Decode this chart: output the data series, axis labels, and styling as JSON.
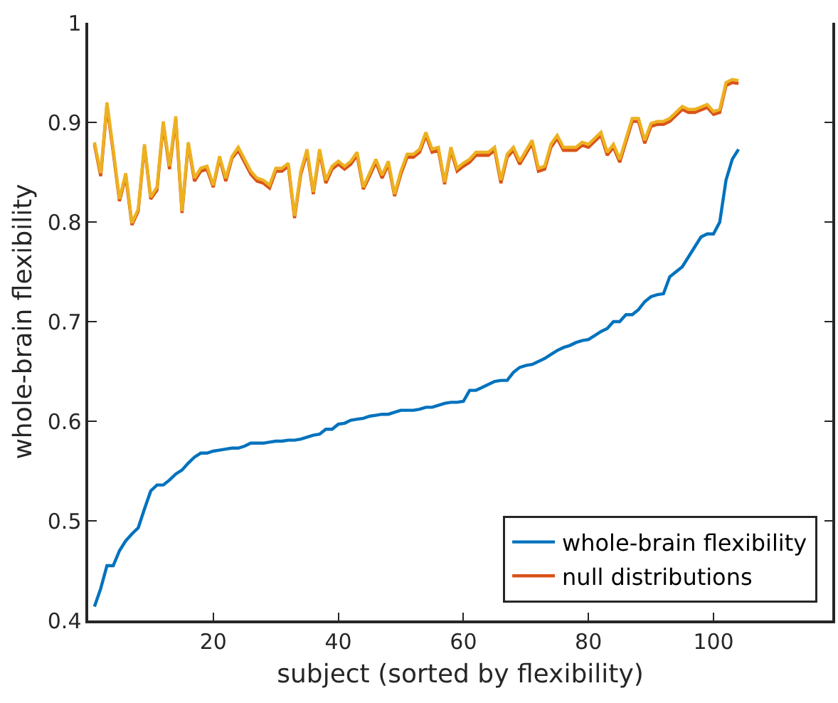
{
  "chart_data": {
    "type": "line",
    "xlabel": "subject (sorted by flexibility)",
    "ylabel": "whole-brain flexibility",
    "xlim": [
      0,
      119
    ],
    "xticks": [
      20,
      40,
      60,
      80,
      100
    ],
    "ylim": [
      0.4,
      1
    ],
    "yticks": [
      0.4,
      0.5,
      0.6,
      0.7,
      0.8,
      0.9,
      {
        "value": 1,
        "label": "1"
      }
    ],
    "legend": "bottom right",
    "marker": "none",
    "line_style": "solid",
    "series": [
      {
        "name": null,
        "color": "#edb120",
        "x": [
          1,
          2,
          3,
          4,
          5,
          6,
          7,
          8,
          9,
          10,
          11,
          12,
          13,
          14,
          15,
          16,
          17,
          18,
          19,
          20,
          21,
          22,
          23,
          24,
          25,
          26,
          27,
          28,
          29,
          30,
          31,
          32,
          33,
          34,
          35,
          36,
          37,
          38,
          39,
          40,
          41,
          42,
          43,
          44,
          45,
          46,
          47,
          48,
          49,
          50,
          51,
          52,
          53,
          54,
          55,
          56,
          57,
          58,
          59,
          60,
          61,
          62,
          64,
          65,
          66,
          67,
          68,
          69,
          71,
          72,
          73,
          74,
          75,
          76,
          77,
          78,
          79,
          80,
          82,
          83,
          84,
          85,
          87,
          88,
          89,
          90,
          91,
          92,
          93,
          95,
          96,
          97,
          99,
          100,
          101,
          102,
          103,
          104
        ],
        "values": [
          0.88,
          0.849,
          0.92,
          0.873,
          0.823,
          0.849,
          0.799,
          0.813,
          0.878,
          0.825,
          0.835,
          0.901,
          0.856,
          0.906,
          0.811,
          0.88,
          0.844,
          0.854,
          0.856,
          0.837,
          0.866,
          0.844,
          0.866,
          0.875,
          0.863,
          0.851,
          0.844,
          0.842,
          0.837,
          0.854,
          0.854,
          0.859,
          0.806,
          0.851,
          0.873,
          0.83,
          0.873,
          0.842,
          0.856,
          0.861,
          0.856,
          0.861,
          0.87,
          0.835,
          0.849,
          0.863,
          0.847,
          0.861,
          0.828,
          0.851,
          0.868,
          0.868,
          0.873,
          0.89,
          0.873,
          0.875,
          0.84,
          0.875,
          0.854,
          0.859,
          0.863,
          0.87,
          0.87,
          0.875,
          0.842,
          0.868,
          0.875,
          0.861,
          0.882,
          0.854,
          0.856,
          0.878,
          0.887,
          0.875,
          0.875,
          0.875,
          0.88,
          0.878,
          0.89,
          0.87,
          0.878,
          0.863,
          0.904,
          0.904,
          0.882,
          0.899,
          0.901,
          0.901,
          0.904,
          0.916,
          0.913,
          0.913,
          0.918,
          0.911,
          0.913,
          0.94,
          0.943,
          0.942
        ]
      },
      {
        "name": "null distributions",
        "color": "#d95319",
        "x": [
          1,
          2,
          3,
          4,
          5,
          6,
          7,
          8,
          9,
          10,
          11,
          12,
          13,
          14,
          15,
          16,
          17,
          18,
          19,
          20,
          21,
          22,
          23,
          24,
          25,
          26,
          27,
          28,
          29,
          30,
          31,
          32,
          33,
          34,
          35,
          36,
          37,
          38,
          39,
          40,
          41,
          42,
          43,
          44,
          45,
          46,
          47,
          48,
          49,
          50,
          51,
          52,
          53,
          54,
          55,
          56,
          57,
          58,
          59,
          60,
          61,
          62,
          64,
          65,
          66,
          67,
          68,
          69,
          71,
          72,
          73,
          74,
          75,
          76,
          77,
          78,
          79,
          80,
          82,
          83,
          84,
          85,
          87,
          88,
          89,
          90,
          91,
          92,
          93,
          95,
          96,
          97,
          99,
          100,
          101,
          102,
          103,
          104
        ],
        "values": [
          0.878,
          0.846,
          0.917,
          0.87,
          0.821,
          0.846,
          0.797,
          0.811,
          0.876,
          0.823,
          0.832,
          0.898,
          0.853,
          0.903,
          0.809,
          0.878,
          0.841,
          0.851,
          0.853,
          0.835,
          0.864,
          0.841,
          0.864,
          0.872,
          0.86,
          0.848,
          0.841,
          0.839,
          0.834,
          0.851,
          0.851,
          0.856,
          0.804,
          0.848,
          0.87,
          0.828,
          0.87,
          0.839,
          0.853,
          0.858,
          0.853,
          0.858,
          0.867,
          0.833,
          0.846,
          0.86,
          0.844,
          0.858,
          0.826,
          0.848,
          0.865,
          0.865,
          0.87,
          0.887,
          0.87,
          0.872,
          0.838,
          0.872,
          0.851,
          0.856,
          0.86,
          0.867,
          0.867,
          0.872,
          0.839,
          0.865,
          0.872,
          0.858,
          0.879,
          0.851,
          0.853,
          0.875,
          0.884,
          0.872,
          0.872,
          0.872,
          0.877,
          0.875,
          0.887,
          0.867,
          0.875,
          0.86,
          0.901,
          0.901,
          0.879,
          0.896,
          0.898,
          0.898,
          0.901,
          0.913,
          0.91,
          0.91,
          0.915,
          0.908,
          0.91,
          0.937,
          0.94,
          0.939
        ]
      },
      {
        "name": "whole-brain flexibility",
        "color": "#0072bd",
        "x": [
          1,
          2,
          3,
          4,
          5,
          6,
          7,
          8,
          9,
          10,
          11,
          12,
          13,
          14,
          15,
          16,
          17,
          18,
          19,
          20,
          21,
          22,
          23,
          24,
          25,
          26,
          27,
          28,
          29,
          30,
          31,
          32,
          33,
          34,
          35,
          36,
          37,
          38,
          39,
          40,
          41,
          42,
          43,
          44,
          45,
          46,
          47,
          48,
          49,
          50,
          51,
          52,
          53,
          54,
          55,
          56,
          57,
          58,
          59,
          60,
          61,
          62,
          63,
          64,
          65,
          66,
          67,
          68,
          69,
          70,
          71,
          72,
          73,
          74,
          75,
          76,
          77,
          78,
          79,
          80,
          81,
          82,
          83,
          84,
          85,
          86,
          87,
          88,
          89,
          90,
          91,
          92,
          93,
          94,
          95,
          96,
          97,
          98,
          99,
          100,
          101,
          102,
          103,
          104
        ],
        "values": [
          0.414,
          0.432,
          0.455,
          0.455,
          0.47,
          0.48,
          0.487,
          0.493,
          0.512,
          0.53,
          0.536,
          0.536,
          0.541,
          0.547,
          0.551,
          0.558,
          0.564,
          0.568,
          0.568,
          0.57,
          0.571,
          0.572,
          0.573,
          0.573,
          0.575,
          0.578,
          0.578,
          0.578,
          0.579,
          0.58,
          0.58,
          0.581,
          0.581,
          0.582,
          0.584,
          0.586,
          0.587,
          0.592,
          0.592,
          0.597,
          0.598,
          0.601,
          0.602,
          0.603,
          0.605,
          0.606,
          0.607,
          0.607,
          0.609,
          0.611,
          0.611,
          0.611,
          0.612,
          0.614,
          0.614,
          0.616,
          0.618,
          0.619,
          0.619,
          0.62,
          0.631,
          0.631,
          0.634,
          0.637,
          0.64,
          0.641,
          0.641,
          0.649,
          0.654,
          0.656,
          0.657,
          0.66,
          0.663,
          0.667,
          0.671,
          0.674,
          0.676,
          0.679,
          0.681,
          0.682,
          0.686,
          0.69,
          0.693,
          0.7,
          0.7,
          0.707,
          0.707,
          0.712,
          0.72,
          0.725,
          0.727,
          0.728,
          0.745,
          0.75,
          0.755,
          0.765,
          0.775,
          0.785,
          0.788,
          0.788,
          0.8,
          0.842,
          0.863,
          0.873
        ]
      }
    ]
  }
}
